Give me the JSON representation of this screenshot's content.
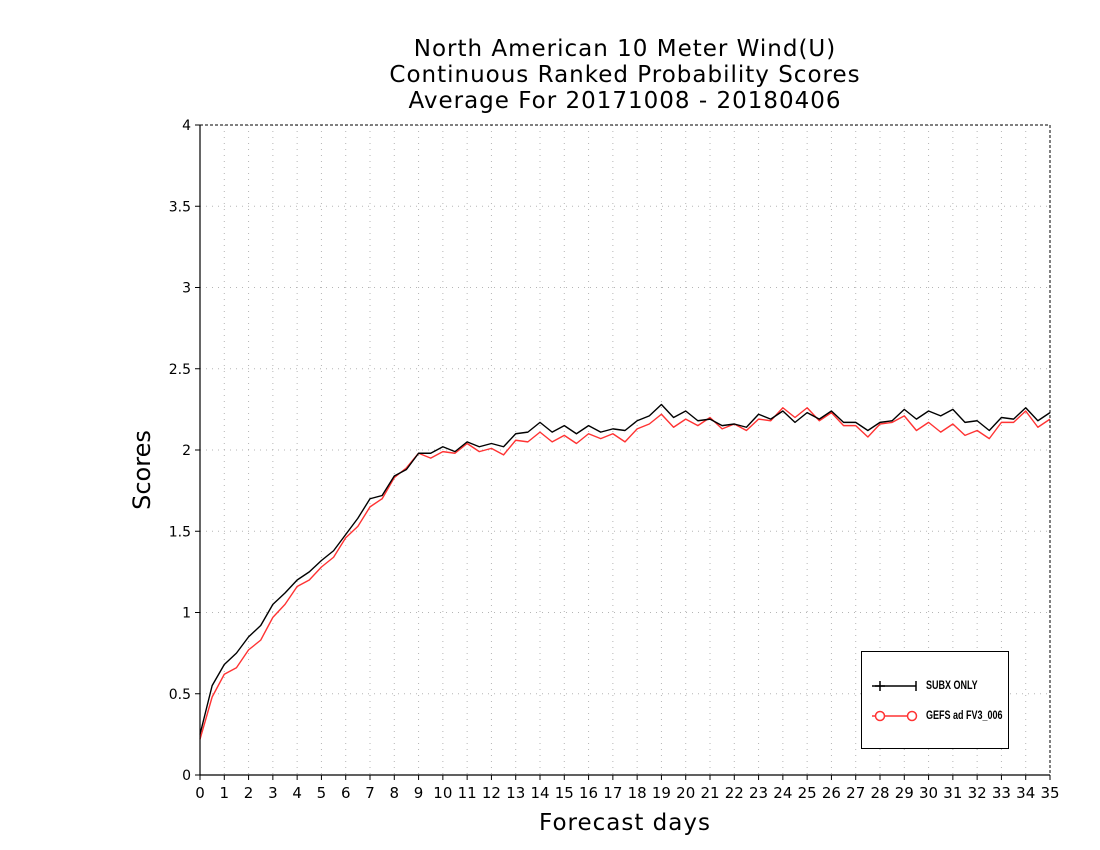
{
  "chart_data": {
    "type": "line",
    "title": [
      "North American 10 Meter Wind(U)",
      "Continuous Ranked Probability Scores",
      "Average For 20171008 - 20180406"
    ],
    "xlabel": "Forecast days",
    "ylabel": "Scores",
    "xlim": [
      0,
      35
    ],
    "ylim": [
      0,
      4
    ],
    "xticks": [
      0,
      1,
      2,
      3,
      4,
      5,
      6,
      7,
      8,
      9,
      10,
      11,
      12,
      13,
      14,
      15,
      16,
      17,
      18,
      19,
      20,
      21,
      22,
      23,
      24,
      25,
      26,
      27,
      28,
      29,
      30,
      31,
      32,
      33,
      34,
      35
    ],
    "yticks": [
      0,
      0.5,
      1,
      1.5,
      2,
      2.5,
      3,
      3.5,
      4
    ],
    "ytick_labels": [
      "0",
      "0.5",
      "1",
      "1.5",
      "2",
      "2.5",
      "3",
      "3.5",
      "4"
    ],
    "grid": true,
    "legend_position": "bottom-right",
    "x": [
      0,
      0.5,
      1,
      1.5,
      2,
      2.5,
      3,
      3.5,
      4,
      4.5,
      5,
      5.5,
      6,
      6.5,
      7,
      7.5,
      8,
      8.5,
      9,
      9.5,
      10,
      10.5,
      11,
      11.5,
      12,
      12.5,
      13,
      13.5,
      14,
      14.5,
      15,
      15.5,
      16,
      16.5,
      17,
      17.5,
      18,
      18.5,
      19,
      19.5,
      20,
      20.5,
      21,
      21.5,
      22,
      22.5,
      23,
      23.5,
      24,
      24.5,
      25,
      25.5,
      26,
      26.5,
      27,
      27.5,
      28,
      28.5,
      29,
      29.5,
      30,
      30.5,
      31,
      31.5,
      32,
      32.5,
      33,
      33.5,
      34,
      34.5,
      35
    ],
    "series": [
      {
        "name": "SUBX ONLY",
        "color": "#000000",
        "marker": "plus",
        "values": [
          0.25,
          0.55,
          0.68,
          0.75,
          0.85,
          0.92,
          1.05,
          1.12,
          1.2,
          1.25,
          1.32,
          1.38,
          1.48,
          1.58,
          1.7,
          1.72,
          1.84,
          1.88,
          1.98,
          1.98,
          2.02,
          1.99,
          2.05,
          2.02,
          2.04,
          2.02,
          2.1,
          2.11,
          2.17,
          2.11,
          2.15,
          2.1,
          2.15,
          2.11,
          2.13,
          2.12,
          2.18,
          2.21,
          2.28,
          2.2,
          2.24,
          2.18,
          2.19,
          2.15,
          2.16,
          2.14,
          2.22,
          2.19,
          2.24,
          2.17,
          2.23,
          2.19,
          2.24,
          2.17,
          2.17,
          2.12,
          2.17,
          2.18,
          2.25,
          2.19,
          2.24,
          2.21,
          2.25,
          2.17,
          2.18,
          2.12,
          2.2,
          2.19,
          2.26,
          2.18,
          2.23
        ]
      },
      {
        "name": "GEFS ad FV3_006",
        "color": "#ff3333",
        "marker": "circle",
        "values": [
          0.22,
          0.48,
          0.62,
          0.66,
          0.77,
          0.83,
          0.97,
          1.05,
          1.16,
          1.2,
          1.28,
          1.34,
          1.46,
          1.53,
          1.65,
          1.7,
          1.83,
          1.89,
          1.98,
          1.95,
          1.99,
          1.98,
          2.04,
          1.99,
          2.01,
          1.97,
          2.06,
          2.05,
          2.11,
          2.05,
          2.09,
          2.04,
          2.1,
          2.07,
          2.1,
          2.05,
          2.13,
          2.16,
          2.22,
          2.14,
          2.19,
          2.15,
          2.2,
          2.13,
          2.16,
          2.12,
          2.19,
          2.18,
          2.26,
          2.2,
          2.26,
          2.18,
          2.23,
          2.15,
          2.15,
          2.08,
          2.16,
          2.17,
          2.21,
          2.12,
          2.17,
          2.11,
          2.16,
          2.09,
          2.12,
          2.07,
          2.17,
          2.17,
          2.24,
          2.14,
          2.19
        ]
      }
    ]
  }
}
